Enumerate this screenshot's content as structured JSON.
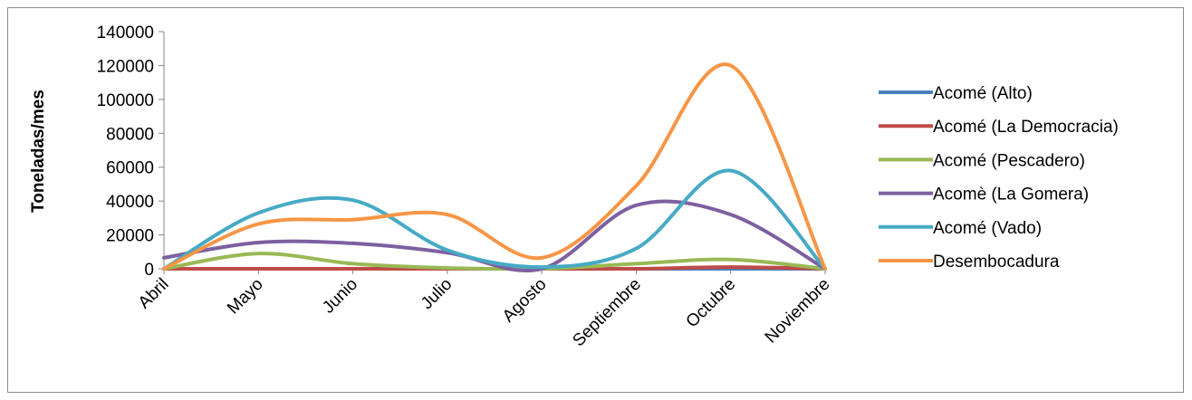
{
  "chart_data": {
    "type": "line",
    "smooth": true,
    "title": "",
    "xlabel": "",
    "ylabel": "Toneladas/mes",
    "ylim": [
      0,
      140000
    ],
    "yticks": [
      0,
      20000,
      40000,
      60000,
      80000,
      100000,
      120000,
      140000
    ],
    "grid": false,
    "legend_position": "right",
    "categories": [
      "Abril",
      "Mayo",
      "Junio",
      "Julio",
      "Agosto",
      "Septiembre",
      "Octubre",
      "Noviembre"
    ],
    "series": [
      {
        "name": "Acomé (Alto)",
        "color": "#4a7ebb",
        "values": [
          0,
          0,
          0,
          0,
          0,
          0,
          0,
          0
        ]
      },
      {
        "name": "Acomé (La Democracia)",
        "color": "#be4b48",
        "values": [
          0,
          0,
          0,
          0,
          0,
          0,
          1000,
          0
        ]
      },
      {
        "name": "Acomé  (Pescadero)",
        "color": "#98b954",
        "values": [
          0,
          9000,
          3000,
          500,
          0,
          3000,
          5500,
          0
        ]
      },
      {
        "name": "Acomè (La Gomera)",
        "color": "#7d60a0",
        "values": [
          6500,
          15500,
          15000,
          9500,
          0,
          37500,
          32000,
          0
        ]
      },
      {
        "name": "Acomé (Vado)",
        "color": "#46aac5",
        "values": [
          0,
          33000,
          40500,
          11000,
          1000,
          12000,
          58000,
          0
        ]
      },
      {
        "name": "Desembocadura",
        "color": "#f79646",
        "values": [
          0,
          26500,
          29000,
          32000,
          6500,
          49000,
          120000,
          0
        ]
      }
    ]
  }
}
